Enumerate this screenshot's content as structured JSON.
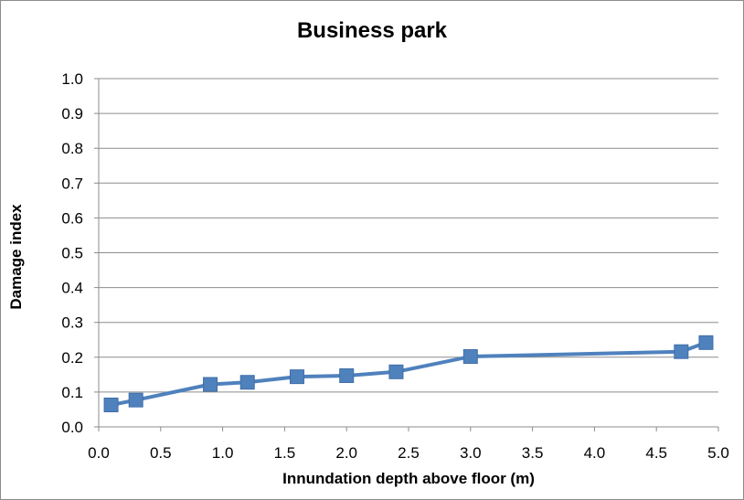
{
  "chart_data": {
    "type": "line",
    "title": "Business park",
    "xlabel": "Innundation depth above floor (m)",
    "ylabel": "Damage index",
    "xlim": [
      0.0,
      5.0
    ],
    "ylim": [
      0.0,
      1.0
    ],
    "x_ticks": [
      "0.0",
      "0.5",
      "1.0",
      "1.5",
      "2.0",
      "2.5",
      "3.0",
      "3.5",
      "4.0",
      "4.5",
      "5.0"
    ],
    "y_ticks": [
      "0.0",
      "0.1",
      "0.2",
      "0.3",
      "0.4",
      "0.5",
      "0.6",
      "0.7",
      "0.8",
      "0.9",
      "1.0"
    ],
    "grid": true,
    "legend": false,
    "series": [
      {
        "color": "#4f81bd",
        "marker": "square",
        "x": [
          0.1,
          0.3,
          0.9,
          1.2,
          1.6,
          2.0,
          2.4,
          3.0,
          4.7,
          4.9
        ],
        "y": [
          0.063,
          0.077,
          0.122,
          0.128,
          0.144,
          0.147,
          0.158,
          0.202,
          0.216,
          0.242
        ]
      }
    ]
  }
}
